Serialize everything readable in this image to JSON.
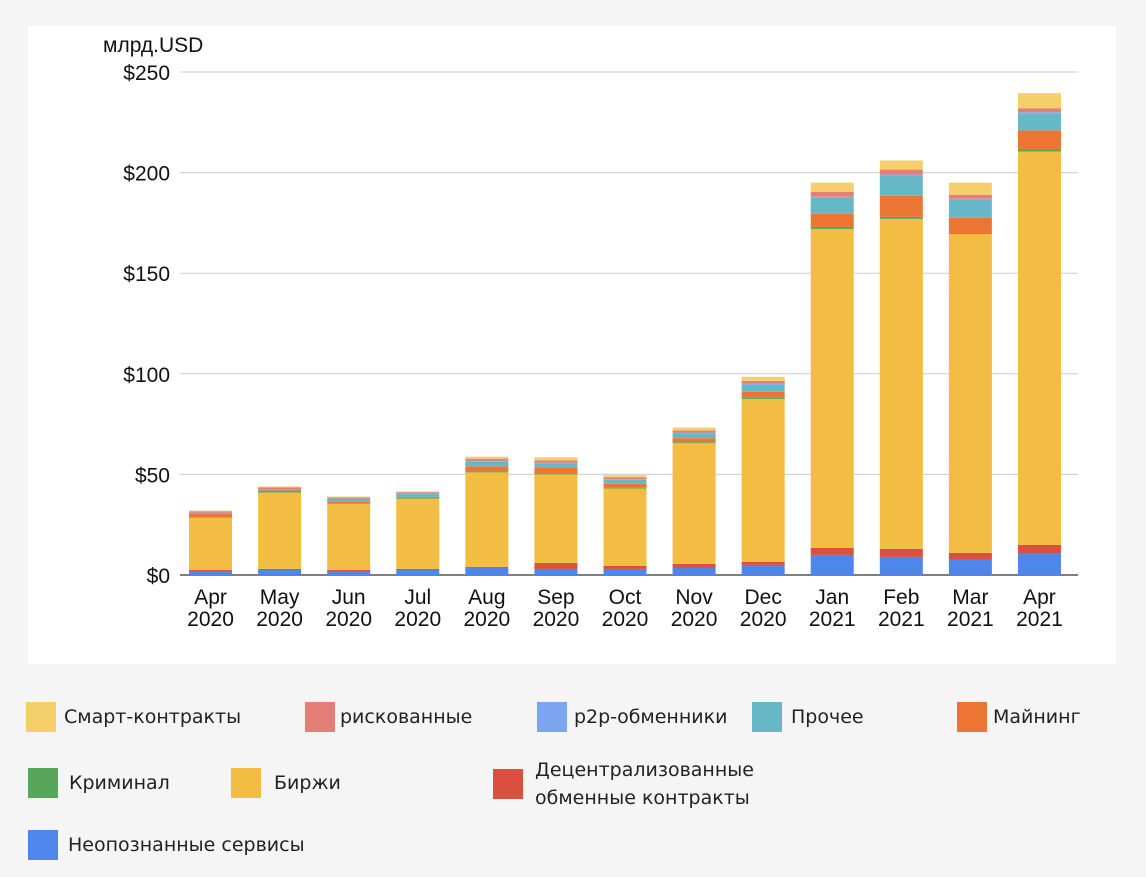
{
  "chart_data": {
    "type": "bar",
    "stacked": true,
    "ylabel": "млрд.USD",
    "ylim": [
      0,
      250
    ],
    "y_ticks": [
      "$0",
      "$50",
      "$100",
      "$150",
      "$200",
      "$250"
    ],
    "y_tick_values": [
      0,
      50,
      100,
      150,
      200,
      250
    ],
    "grid": true,
    "legend_placement": "bottom",
    "categories": [
      [
        "Apr",
        "2020"
      ],
      [
        "May",
        "2020"
      ],
      [
        "Jun",
        "2020"
      ],
      [
        "Jul",
        "2020"
      ],
      [
        "Aug",
        "2020"
      ],
      [
        "Sep",
        "2020"
      ],
      [
        "Oct",
        "2020"
      ],
      [
        "Nov",
        "2020"
      ],
      [
        "Dec",
        "2020"
      ],
      [
        "Jan",
        "2021"
      ],
      [
        "Feb",
        "2021"
      ],
      [
        "Mar",
        "2021"
      ],
      [
        "Apr",
        "2021"
      ]
    ],
    "series": [
      {
        "name": "Неопознанные сервисы",
        "color": "#4f86ec",
        "values": [
          2,
          2.5,
          2,
          2.5,
          3.5,
          3,
          3,
          3.5,
          5,
          10,
          9,
          7.5,
          10.5
        ]
      },
      {
        "name": "Децентрализованные обменные контракты",
        "color": "#d9503f",
        "values": [
          0.5,
          0.5,
          0.5,
          0.5,
          0.5,
          3,
          1.5,
          2,
          1.5,
          3.5,
          4,
          3.5,
          4.5
        ]
      },
      {
        "name": "Биржи",
        "color": "#f2bd42",
        "values": [
          26,
          38,
          33,
          35,
          47,
          44,
          38.5,
          60,
          81,
          158.5,
          164,
          158.5,
          195.5
        ]
      },
      {
        "name": "Криминал",
        "color": "#58a65c",
        "values": [
          0.3,
          0.5,
          0.3,
          0.3,
          0.5,
          0.5,
          0.3,
          0.5,
          0.5,
          1,
          1,
          0.5,
          1
        ]
      },
      {
        "name": "Майнинг",
        "color": "#ed7533",
        "values": [
          1.5,
          0.5,
          0.5,
          0.5,
          2.5,
          3,
          2,
          2,
          3,
          6.5,
          10.5,
          7.5,
          9.5
        ]
      },
      {
        "name": "Прочее",
        "color": "#67b8c6",
        "values": [
          0.5,
          0.5,
          1.5,
          1.5,
          2.5,
          2,
          2,
          2.5,
          3.5,
          8,
          10,
          9,
          8.5
        ]
      },
      {
        "name": "p2p-обменники",
        "color": "#7ba5ee",
        "values": [
          0.2,
          0.2,
          0.2,
          0.3,
          0.3,
          0.3,
          0.3,
          0.3,
          0.5,
          0.5,
          0.5,
          0.5,
          0.5
        ]
      },
      {
        "name": "рискованные",
        "color": "#e47f78",
        "values": [
          0.7,
          0.8,
          0.5,
          0.6,
          1,
          1.2,
          1,
          1,
          1.5,
          2.5,
          2.5,
          2,
          2
        ]
      },
      {
        "name": "Смарт-контракты",
        "color": "#f5d06a",
        "values": [
          0.3,
          0.5,
          0.5,
          0.3,
          1,
          1.5,
          1,
          1.5,
          2,
          4.5,
          4.5,
          6,
          7.5
        ]
      }
    ]
  },
  "legend": [
    {
      "label": "Смарт-контракты",
      "color": "#f5d06a"
    },
    {
      "label": "рискованные",
      "color": "#e47f78"
    },
    {
      "label": "p2p-обменники",
      "color": "#7ba5ee"
    },
    {
      "label": "Прочее",
      "color": "#67b8c6"
    },
    {
      "label": "Майнинг",
      "color": "#ed7533"
    },
    {
      "label": "Криминал",
      "color": "#58a65c"
    },
    {
      "label": "Биржи",
      "color": "#f2bd42"
    },
    {
      "label": "Децентрализованные обменные контракты",
      "color": "#d9503f"
    },
    {
      "label": "Неопознанные сервисы",
      "color": "#4f86ec"
    }
  ]
}
